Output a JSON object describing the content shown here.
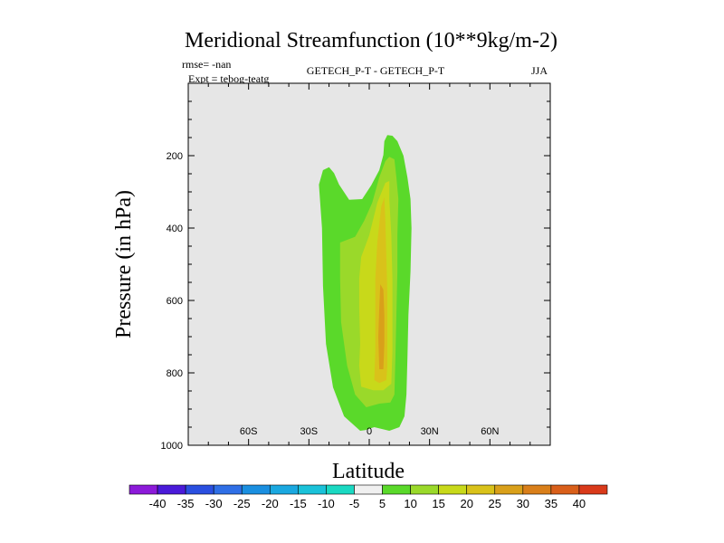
{
  "chart_data": {
    "type": "contour",
    "title": "Meridional Streamfunction (10**9kg/m-2)",
    "annotations": {
      "rmse": "rmse= -nan",
      "expt": "Expt = tebog-teatg",
      "comparison": "GETECH_P-T - GETECH_P-T",
      "season": "JJA"
    },
    "xlabel": "Latitude",
    "ylabel": "Pressure (in hPa)",
    "xlim": [
      -90,
      90
    ],
    "ylim": [
      0,
      1000
    ],
    "y_inverted": true,
    "xticks": [
      {
        "value": -60,
        "label": "60S"
      },
      {
        "value": -30,
        "label": "30S"
      },
      {
        "value": 0,
        "label": "0"
      },
      {
        "value": 30,
        "label": "30N"
      },
      {
        "value": 60,
        "label": "60N"
      }
    ],
    "yticks": [
      {
        "value": 200,
        "label": "200"
      },
      {
        "value": 400,
        "label": "400"
      },
      {
        "value": 600,
        "label": "600"
      },
      {
        "value": 800,
        "label": "800"
      },
      {
        "value": 1000,
        "label": "1000"
      }
    ],
    "background_color": "#e6e6e6",
    "levels": [
      -40,
      -35,
      -30,
      -25,
      -20,
      -15,
      -10,
      -5,
      5,
      10,
      15,
      20,
      25,
      30,
      35,
      40
    ],
    "colorbar_colors": [
      "#8c1ad9",
      "#4a1ad9",
      "#2a4fe0",
      "#2f6fe6",
      "#1a8fe0",
      "#1aa8e0",
      "#1ac2d9",
      "#1ad9c2",
      "#f0f0f0",
      "#5ad92a",
      "#9ad92a",
      "#c8d91a",
      "#d9c21a",
      "#d9a01a",
      "#d97f1a",
      "#d95f1a",
      "#d93a1a"
    ],
    "contours": [
      {
        "level": "5-10",
        "color": "#5ad92a",
        "points": [
          [
            -4.5,
            960
          ],
          [
            -12.5,
            920
          ],
          [
            -18,
            840
          ],
          [
            -21.5,
            720
          ],
          [
            -23,
            560
          ],
          [
            -23.5,
            400
          ],
          [
            -25,
            280
          ],
          [
            -23,
            240
          ],
          [
            -20,
            232
          ],
          [
            -17.5,
            248
          ],
          [
            -15,
            280
          ],
          [
            -10,
            322
          ],
          [
            -3.5,
            320
          ],
          [
            1,
            282
          ],
          [
            5,
            240
          ],
          [
            7,
            198
          ],
          [
            7.5,
            160
          ],
          [
            9,
            143
          ],
          [
            11.5,
            145
          ],
          [
            14,
            160
          ],
          [
            17,
            200
          ],
          [
            19,
            260
          ],
          [
            20.5,
            320
          ],
          [
            21,
            400
          ],
          [
            20.5,
            520
          ],
          [
            19.5,
            640
          ],
          [
            19,
            760
          ],
          [
            18.5,
            860
          ],
          [
            17.5,
            920
          ],
          [
            15,
            950
          ],
          [
            10,
            960
          ],
          [
            2.5,
            950
          ],
          [
            -2,
            958
          ],
          [
            -4.5,
            960
          ]
        ]
      },
      {
        "level": "10-15",
        "color": "#9ad92a",
        "points": [
          [
            -1.5,
            895
          ],
          [
            -7,
            860
          ],
          [
            -11,
            780
          ],
          [
            -14,
            660
          ],
          [
            -14.5,
            540
          ],
          [
            -14.5,
            440
          ],
          [
            -7,
            424
          ],
          [
            -2.5,
            380
          ],
          [
            1.5,
            330
          ],
          [
            5,
            260
          ],
          [
            8,
            215
          ],
          [
            10,
            203
          ],
          [
            12.5,
            210
          ],
          [
            13.5,
            260
          ],
          [
            14.5,
            320
          ],
          [
            14,
            420
          ],
          [
            14,
            520
          ],
          [
            13.5,
            640
          ],
          [
            13,
            760
          ],
          [
            12.5,
            860
          ],
          [
            10.5,
            882
          ],
          [
            5,
            885
          ],
          [
            -1.5,
            895
          ]
        ]
      },
      {
        "level": "15-20",
        "color": "#c8d91a",
        "points": [
          [
            -4,
            838
          ],
          [
            -5,
            780
          ],
          [
            -4.5,
            720
          ],
          [
            -5,
            620
          ],
          [
            -5,
            540
          ],
          [
            -4,
            480
          ],
          [
            0,
            420
          ],
          [
            4,
            330
          ],
          [
            8,
            275
          ],
          [
            10,
            270
          ],
          [
            10,
            320
          ],
          [
            11,
            420
          ],
          [
            11.5,
            540
          ],
          [
            11.5,
            640
          ],
          [
            11.5,
            740
          ],
          [
            11,
            830
          ],
          [
            7,
            848
          ],
          [
            2,
            848
          ],
          [
            -4,
            838
          ]
        ]
      },
      {
        "level": "20-25",
        "color": "#d9c21a",
        "points": [
          [
            2.5,
            820
          ],
          [
            3,
            740
          ],
          [
            3,
            640
          ],
          [
            3,
            540
          ],
          [
            4,
            440
          ],
          [
            6,
            340
          ],
          [
            7.5,
            315
          ],
          [
            8,
            380
          ],
          [
            8.5,
            480
          ],
          [
            9,
            580
          ],
          [
            9,
            680
          ],
          [
            9,
            780
          ],
          [
            8.5,
            820
          ],
          [
            5,
            828
          ],
          [
            2.5,
            820
          ]
        ]
      },
      {
        "level": "25-30",
        "color": "#d9a01a",
        "points": [
          [
            5,
            790
          ],
          [
            4.5,
            700
          ],
          [
            5,
            620
          ],
          [
            5.5,
            555
          ],
          [
            7,
            570
          ],
          [
            7.5,
            640
          ],
          [
            7.5,
            720
          ],
          [
            7,
            790
          ],
          [
            5,
            790
          ]
        ]
      }
    ]
  }
}
